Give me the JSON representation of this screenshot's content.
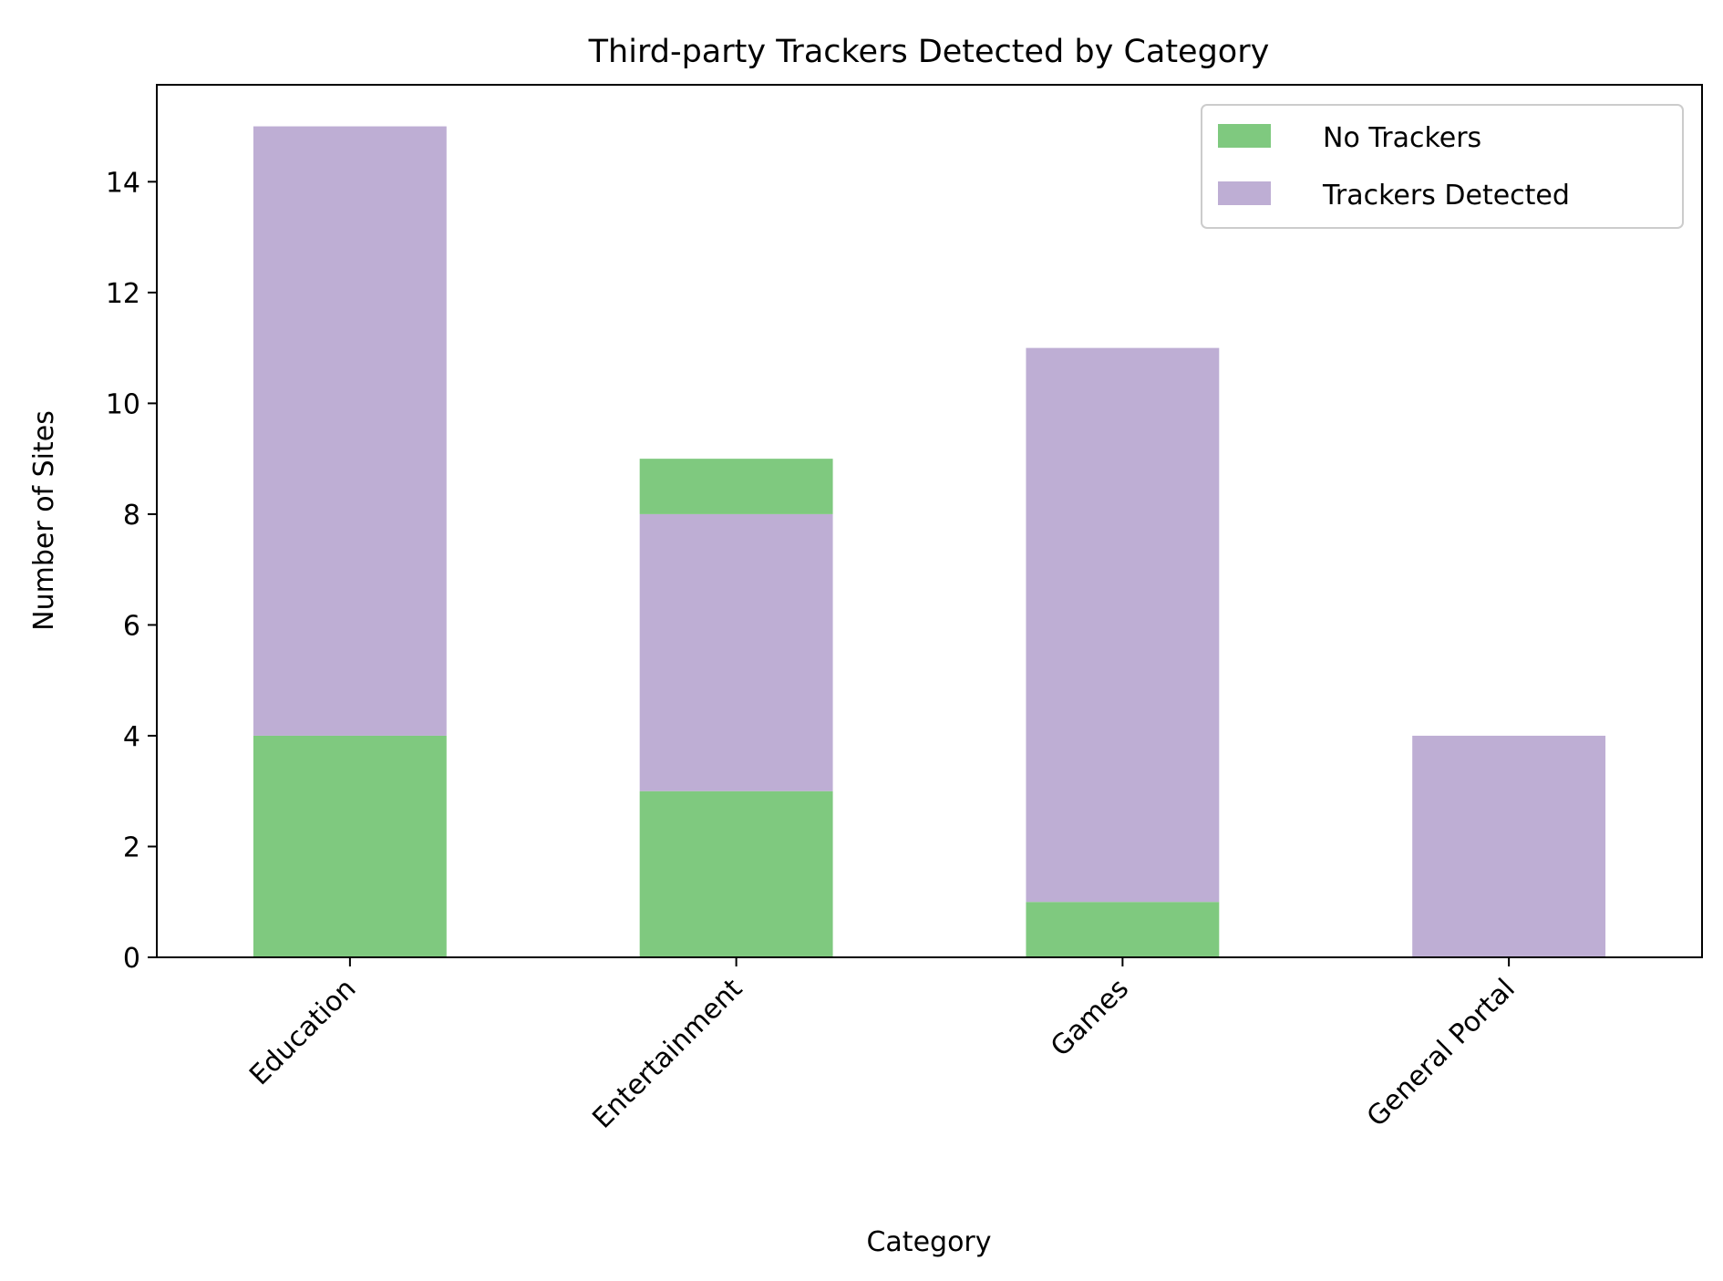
{
  "chart_data": {
    "type": "bar",
    "stacked": true,
    "title": "Third-party Trackers Detected by Category",
    "xlabel": "Category",
    "ylabel": "Number of Sites",
    "categories": [
      "Education",
      "Entertainment",
      "Games",
      "General Portal"
    ],
    "series": [
      {
        "name": "No Trackers",
        "values": [
          4,
          3,
          1,
          0
        ],
        "color": "#7fc97f"
      },
      {
        "name": "Trackers Detected",
        "values": [
          11,
          5,
          10,
          4
        ],
        "color": "#beaed4"
      },
      {
        "name": "",
        "values": [
          0,
          1,
          0,
          0
        ],
        "color": "#7fc97f"
      }
    ],
    "legend_series": [
      0,
      1
    ],
    "yticks": [
      0,
      2,
      4,
      6,
      8,
      10,
      12,
      14
    ],
    "ylim": [
      0,
      15.75
    ],
    "grid": false,
    "legend": "top-right"
  }
}
